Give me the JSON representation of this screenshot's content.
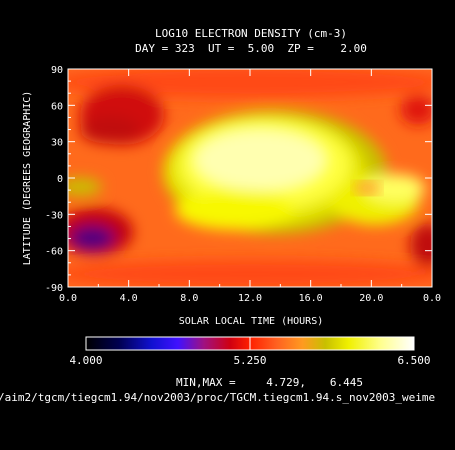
{
  "chart_data": {
    "type": "heatmap",
    "title": "LOG10 ELECTRON DENSITY (cm-3)",
    "subtitle": "DAY = 323  UT =  5.00  ZP =    2.00",
    "xlabel": "SOLAR LOCAL TIME (HOURS)",
    "ylabel": "LATITUDE (DEGREES GEOGRAPHIC)",
    "x_ticks": [
      "0.0",
      "4.0",
      "8.0",
      "12.0",
      "16.0",
      "20.0",
      "0.0"
    ],
    "y_ticks": [
      "90",
      "60",
      "30",
      "0",
      "-30",
      "-60",
      "-90"
    ],
    "xlim": [
      0,
      24
    ],
    "ylim": [
      -90,
      90
    ],
    "colorbar": {
      "min": 4.0,
      "max": 6.5,
      "labels": [
        "4.000",
        "5.250",
        "6.500"
      ]
    },
    "minmax_label": "MIN,MAX =",
    "data_min": "4.729,",
    "data_max": "6.445",
    "data_min_value": 4.729,
    "data_max_value": 6.445,
    "footer": "/aim2/tgcm/tiegcm1.94/nov2003/proc/TGCM.tiegcm1.94.s_nov2003_weime"
  }
}
